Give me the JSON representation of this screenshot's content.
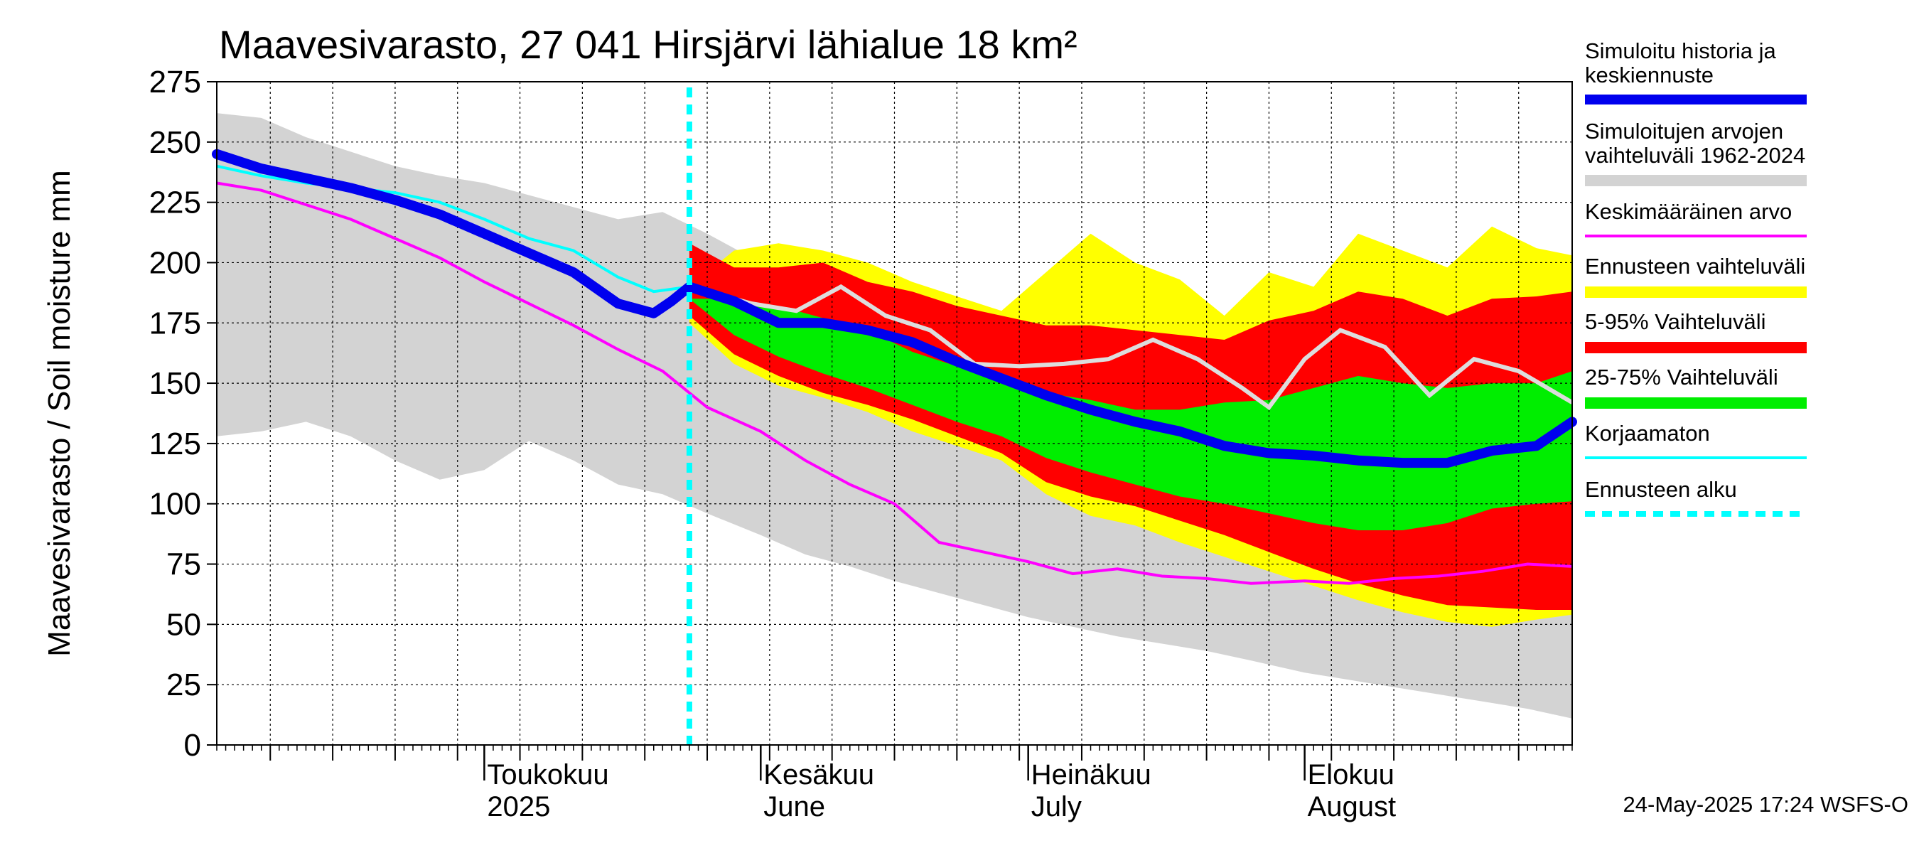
{
  "chart_data": {
    "type": "area",
    "title": "Maavesivarasto, 27 041 Hirsjärvi lähialue 18 km²",
    "ylabel": "Maavesivarasto / Soil moisture   mm",
    "xlabel": "",
    "ylim": [
      0,
      275
    ],
    "yticks": [
      0,
      25,
      50,
      75,
      100,
      125,
      150,
      175,
      200,
      225,
      250,
      275
    ],
    "x_axis": {
      "start": "2025-04-01",
      "end": "2025-08-31",
      "forecast_start": "2025-05-24"
    },
    "x_months": [
      {
        "date": "2025-05-01",
        "label": "Toukokuu",
        "label2": "2025"
      },
      {
        "date": "2025-06-01",
        "label": "Kesäkuu",
        "label2": "June"
      },
      {
        "date": "2025-07-01",
        "label": "Heinäkuu",
        "label2": "July"
      },
      {
        "date": "2025-08-01",
        "label": "Elokuu",
        "label2": "August"
      }
    ],
    "colors": {
      "historical_range": "#d3d3d3",
      "forecast_range": "#ffff00",
      "p5_95": "#ff0000",
      "p25_75": "#00ee00",
      "simulated": "#0000ee",
      "mean": "#ff00ff",
      "uncorrected": "#00ffff",
      "forecast_start": "#00ffff",
      "light_line": "#dddddd"
    },
    "series": [
      {
        "name": "historical_range",
        "dates": [
          "2025-04-01",
          "2025-04-06",
          "2025-04-11",
          "2025-04-16",
          "2025-04-21",
          "2025-04-26",
          "2025-05-01",
          "2025-05-06",
          "2025-05-11",
          "2025-05-16",
          "2025-05-21",
          "2025-05-26",
          "2025-06-01",
          "2025-06-06",
          "2025-06-11",
          "2025-06-16",
          "2025-06-21",
          "2025-06-26",
          "2025-07-01",
          "2025-07-06",
          "2025-07-11",
          "2025-07-16",
          "2025-07-21",
          "2025-07-26",
          "2025-08-01",
          "2025-08-06",
          "2025-08-11",
          "2025-08-16",
          "2025-08-21",
          "2025-08-26",
          "2025-08-31"
        ],
        "upper": [
          262,
          260,
          252,
          246,
          240,
          236,
          233,
          228,
          223,
          218,
          221,
          212,
          200,
          194,
          192,
          186,
          184,
          178,
          181,
          180,
          176,
          172,
          167,
          166,
          165,
          164,
          162,
          155,
          150,
          148,
          145
        ],
        "lower": [
          128,
          130,
          134,
          128,
          118,
          110,
          114,
          126,
          118,
          108,
          104,
          96,
          87,
          79,
          74,
          68,
          63,
          58,
          53,
          49,
          45,
          42,
          39,
          35,
          30,
          27,
          24,
          21,
          18,
          15,
          11
        ]
      },
      {
        "name": "forecast_range",
        "dates": [
          "2025-05-24",
          "2025-05-29",
          "2025-06-03",
          "2025-06-08",
          "2025-06-13",
          "2025-06-18",
          "2025-06-23",
          "2025-06-28",
          "2025-07-03",
          "2025-07-08",
          "2025-07-13",
          "2025-07-18",
          "2025-07-23",
          "2025-07-28",
          "2025-08-02",
          "2025-08-07",
          "2025-08-12",
          "2025-08-17",
          "2025-08-22",
          "2025-08-27",
          "2025-08-31"
        ],
        "upper": [
          190,
          205,
          208,
          205,
          200,
          192,
          186,
          180,
          196,
          212,
          200,
          193,
          178,
          196,
          190,
          212,
          205,
          198,
          215,
          206,
          203
        ],
        "lower": [
          175,
          158,
          149,
          144,
          138,
          130,
          124,
          118,
          104,
          95,
          91,
          84,
          78,
          72,
          66,
          60,
          55,
          51,
          49,
          52,
          54
        ]
      },
      {
        "name": "p5_95",
        "dates": [
          "2025-05-24",
          "2025-05-29",
          "2025-06-03",
          "2025-06-08",
          "2025-06-13",
          "2025-06-18",
          "2025-06-23",
          "2025-06-28",
          "2025-07-03",
          "2025-07-08",
          "2025-07-13",
          "2025-07-18",
          "2025-07-23",
          "2025-07-28",
          "2025-08-02",
          "2025-08-07",
          "2025-08-12",
          "2025-08-17",
          "2025-08-22",
          "2025-08-27",
          "2025-08-31"
        ],
        "upper": [
          208,
          198,
          198,
          200,
          192,
          188,
          182,
          178,
          174,
          174,
          172,
          170,
          168,
          176,
          180,
          188,
          185,
          178,
          185,
          186,
          188
        ],
        "lower": [
          178,
          162,
          153,
          146,
          141,
          135,
          128,
          121,
          109,
          103,
          99,
          93,
          87,
          80,
          73,
          67,
          62,
          58,
          57,
          56,
          56
        ]
      },
      {
        "name": "p25_75",
        "dates": [
          "2025-05-24",
          "2025-05-29",
          "2025-06-03",
          "2025-06-08",
          "2025-06-13",
          "2025-06-18",
          "2025-06-23",
          "2025-06-28",
          "2025-07-03",
          "2025-07-08",
          "2025-07-13",
          "2025-07-18",
          "2025-07-23",
          "2025-07-28",
          "2025-08-02",
          "2025-08-07",
          "2025-08-12",
          "2025-08-17",
          "2025-08-22",
          "2025-08-27",
          "2025-08-31"
        ],
        "upper": [
          185,
          185,
          182,
          177,
          172,
          163,
          157,
          152,
          146,
          143,
          139,
          139,
          142,
          143,
          148,
          153,
          150,
          148,
          150,
          150,
          155
        ],
        "lower": [
          185,
          170,
          161,
          154,
          148,
          141,
          134,
          128,
          119,
          113,
          108,
          103,
          100,
          96,
          92,
          89,
          89,
          92,
          98,
          100,
          101
        ]
      },
      {
        "name": "Simuloitu historia ja keskiennuste",
        "dates": [
          "2025-04-01",
          "2025-04-06",
          "2025-04-11",
          "2025-04-16",
          "2025-04-21",
          "2025-04-26",
          "2025-05-01",
          "2025-05-06",
          "2025-05-11",
          "2025-05-16",
          "2025-05-20",
          "2025-05-22",
          "2025-05-24",
          "2025-05-29",
          "2025-06-03",
          "2025-06-08",
          "2025-06-13",
          "2025-06-18",
          "2025-06-23",
          "2025-06-28",
          "2025-07-03",
          "2025-07-08",
          "2025-07-13",
          "2025-07-18",
          "2025-07-23",
          "2025-07-28",
          "2025-08-02",
          "2025-08-07",
          "2025-08-12",
          "2025-08-17",
          "2025-08-22",
          "2025-08-27",
          "2025-08-31"
        ],
        "values": [
          245,
          239,
          235,
          231,
          226,
          220,
          212,
          204,
          196,
          183,
          179,
          184,
          190,
          184,
          175,
          175,
          172,
          167,
          159,
          152,
          145,
          139,
          134,
          130,
          124,
          121,
          120,
          118,
          117,
          117,
          122,
          124,
          134
        ]
      },
      {
        "name": "Keskimääräinen arvo",
        "dates": [
          "2025-04-01",
          "2025-04-06",
          "2025-04-11",
          "2025-04-16",
          "2025-04-21",
          "2025-04-26",
          "2025-05-01",
          "2025-05-06",
          "2025-05-11",
          "2025-05-16",
          "2025-05-21",
          "2025-05-26",
          "2025-06-01",
          "2025-06-06",
          "2025-06-11",
          "2025-06-16",
          "2025-06-21",
          "2025-06-26",
          "2025-07-01",
          "2025-07-06",
          "2025-07-11",
          "2025-07-16",
          "2025-07-21",
          "2025-07-26",
          "2025-08-01",
          "2025-08-06",
          "2025-08-11",
          "2025-08-16",
          "2025-08-21",
          "2025-08-26",
          "2025-08-31"
        ],
        "values": [
          233,
          230,
          224,
          218,
          210,
          202,
          192,
          183,
          174,
          164,
          155,
          140,
          130,
          118,
          108,
          100,
          84,
          80,
          76,
          71,
          73,
          70,
          69,
          67,
          68,
          67,
          69,
          70,
          72,
          75,
          74
        ]
      },
      {
        "name": "Korjaamaton",
        "dates": [
          "2025-04-01",
          "2025-04-06",
          "2025-04-11",
          "2025-04-16",
          "2025-04-21",
          "2025-04-26",
          "2025-05-01",
          "2025-05-06",
          "2025-05-11",
          "2025-05-16",
          "2025-05-20",
          "2025-05-24"
        ],
        "values": [
          240,
          236,
          233,
          231,
          229,
          225,
          218,
          210,
          205,
          194,
          188,
          190
        ]
      },
      {
        "name": "light_line",
        "dates": [
          "2025-05-24",
          "2025-05-31",
          "2025-06-05",
          "2025-06-10",
          "2025-06-15",
          "2025-06-20",
          "2025-06-25",
          "2025-06-30",
          "2025-07-05",
          "2025-07-10",
          "2025-07-15",
          "2025-07-20",
          "2025-07-25",
          "2025-07-28",
          "2025-08-01",
          "2025-08-05",
          "2025-08-10",
          "2025-08-15",
          "2025-08-20",
          "2025-08-25",
          "2025-08-31"
        ],
        "values": [
          190,
          183,
          180,
          190,
          178,
          172,
          158,
          157,
          158,
          160,
          168,
          160,
          148,
          140,
          160,
          172,
          165,
          145,
          160,
          155,
          142
        ]
      }
    ],
    "legend": [
      {
        "label": "Simuloitu historia ja keskiennuste",
        "color": "#0000ee",
        "style": "thick"
      },
      {
        "label": "Simuloitujen arvojen vaihteluväli 1962-2024",
        "color": "#d3d3d3",
        "style": "band"
      },
      {
        "label": "Keskimääräinen arvo",
        "color": "#ff00ff",
        "style": "line"
      },
      {
        "label": "Ennusteen vaihteluväli",
        "color": "#ffff00",
        "style": "band"
      },
      {
        "label": "5-95% Vaihteluväli",
        "color": "#ff0000",
        "style": "band"
      },
      {
        "label": "25-75% Vaihteluväli",
        "color": "#00ee00",
        "style": "band"
      },
      {
        "label": "Korjaamaton",
        "color": "#00ffff",
        "style": "line"
      },
      {
        "label": "Ennusteen alku",
        "color": "#00ffff",
        "style": "dashed"
      }
    ],
    "footer": "24-May-2025 17:24 WSFS-O"
  }
}
